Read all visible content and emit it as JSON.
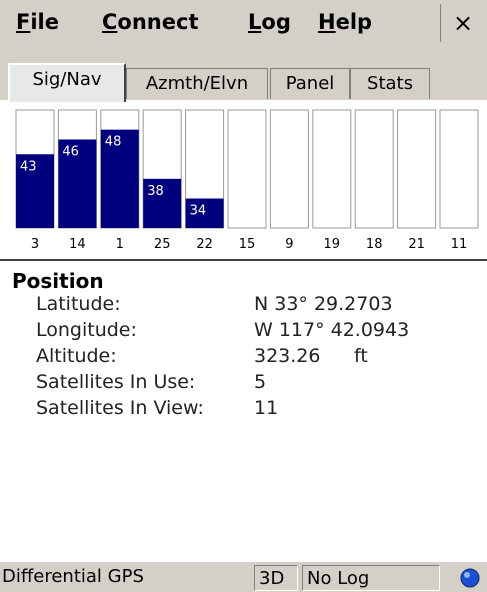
{
  "menu": [
    "File",
    "Connect",
    "Log",
    "Help"
  ],
  "close": "×",
  "tabs": [
    "Sig/Nav",
    "Azmth/Elvn",
    "Panel",
    "Stats"
  ],
  "signal": {
    "satellites": [
      3,
      14,
      1,
      25,
      22,
      15,
      9,
      19,
      18,
      21,
      11
    ],
    "snr": [
      43,
      46,
      48,
      38,
      34,
      null,
      null,
      null,
      null,
      null,
      null
    ],
    "ylim": [
      28,
      52
    ],
    "color": "#00007f"
  },
  "position": {
    "title": "Position",
    "rows": [
      {
        "label": "Latitude:",
        "value": "N 33° 29.2703"
      },
      {
        "label": "Longitude:",
        "value": "W 117° 42.0943"
      },
      {
        "label": "Altitude:",
        "value": "323.26",
        "unit": "ft"
      },
      {
        "label": "Satellites In Use:",
        "value": "5"
      },
      {
        "label": "Satellites In View:",
        "value": "11"
      }
    ]
  },
  "status": {
    "mode": "Differential GPS",
    "fix": "3D",
    "log": "No Log"
  }
}
